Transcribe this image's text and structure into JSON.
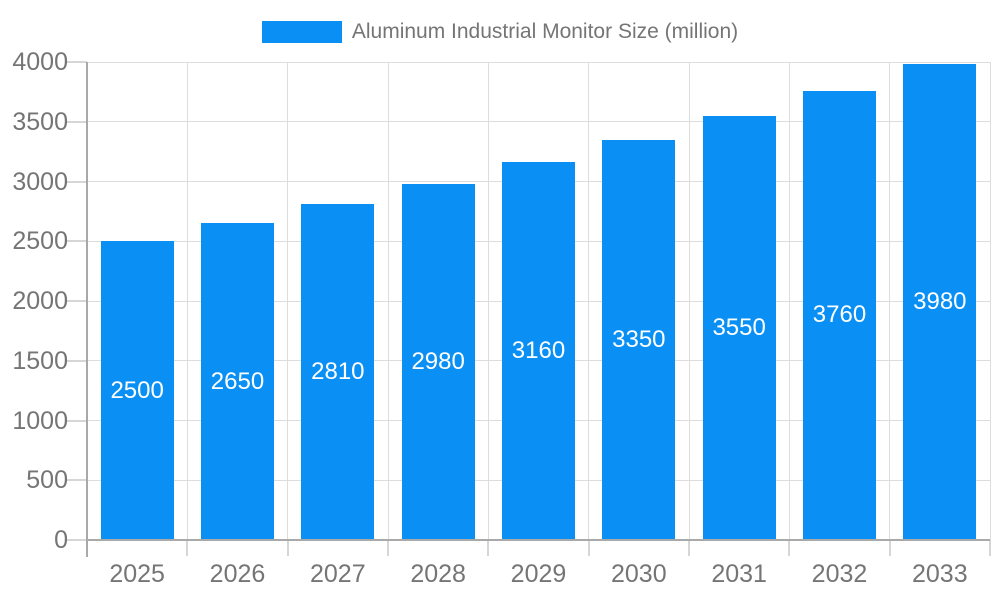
{
  "legend": {
    "label": "Aluminum Industrial Monitor Size (million)"
  },
  "chart_data": {
    "type": "bar",
    "title": "Aluminum Industrial Monitor Size (million)",
    "series_name": "Aluminum Industrial Monitor Size (million)",
    "categories": [
      "2025",
      "2026",
      "2027",
      "2028",
      "2029",
      "2030",
      "2031",
      "2032",
      "2033"
    ],
    "values": [
      2500,
      2650,
      2810,
      2980,
      3160,
      3350,
      3550,
      3760,
      3980
    ],
    "xlabel": "",
    "ylabel": "",
    "ylim": [
      0,
      4000
    ],
    "yticks": [
      0,
      500,
      1000,
      1500,
      2000,
      2500,
      3000,
      3500,
      4000
    ],
    "grid": true,
    "legend_position": "top-center",
    "bar_value_labels_visible": true,
    "colors": {
      "bar": "#0A90F5",
      "bar_label": "#FFFFFF",
      "axis_text": "#757575",
      "legend_text": "#757575",
      "grid_line": "#DDDDDD",
      "tick_line": "#D6D6D6",
      "axis_line": "#A9A9A9",
      "background": "#FFFFFF"
    }
  }
}
